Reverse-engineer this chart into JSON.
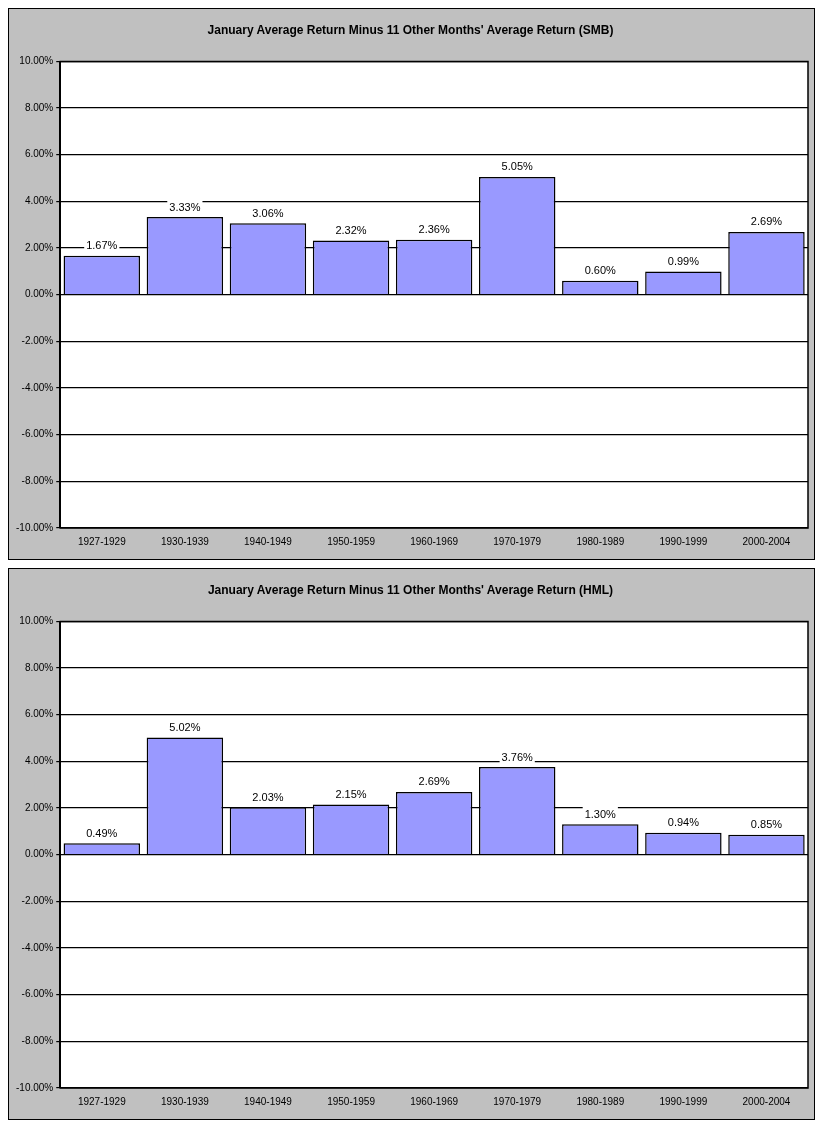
{
  "chart_data": [
    {
      "type": "bar",
      "title": "January Average Return Minus 11 Other Months' Average Return (SMB)",
      "categories": [
        "1927-1929",
        "1930-1939",
        "1940-1949",
        "1950-1959",
        "1960-1969",
        "1970-1979",
        "1980-1989",
        "1990-1999",
        "2000-2004"
      ],
      "values": [
        1.67,
        3.33,
        3.06,
        2.32,
        2.36,
        5.05,
        0.6,
        0.99,
        2.69
      ],
      "value_labels": [
        "1.67%",
        "3.33%",
        "3.06%",
        "2.32%",
        "2.36%",
        "5.05%",
        "0.60%",
        "0.99%",
        "2.69%"
      ],
      "color": "#9999ff",
      "ylim": [
        -10,
        10
      ],
      "yticks": [
        {
          "value": -10,
          "label": "-10.00%"
        },
        {
          "value": -8,
          "label": "-8.00%"
        },
        {
          "value": -6,
          "label": "-6.00%"
        },
        {
          "value": -4,
          "label": "-4.00%"
        },
        {
          "value": -2,
          "label": "-2.00%"
        },
        {
          "value": 0,
          "label": "0.00%"
        },
        {
          "value": 2,
          "label": "2.00%"
        },
        {
          "value": 4,
          "label": "4.00%"
        },
        {
          "value": 6,
          "label": "6.00%"
        },
        {
          "value": 8,
          "label": "8.00%"
        },
        {
          "value": 10,
          "label": "10.00%"
        }
      ],
      "grid": "y",
      "legend": false
    },
    {
      "type": "bar",
      "title": "January Average Return Minus 11 Other Months' Average Return (HML)",
      "categories": [
        "1927-1929",
        "1930-1939",
        "1940-1949",
        "1950-1959",
        "1960-1969",
        "1970-1979",
        "1980-1989",
        "1990-1999",
        "2000-2004"
      ],
      "values": [
        0.49,
        5.02,
        2.03,
        2.15,
        2.69,
        3.76,
        1.3,
        0.94,
        0.85
      ],
      "value_labels": [
        "0.49%",
        "5.02%",
        "2.03%",
        "2.15%",
        "2.69%",
        "3.76%",
        "1.30%",
        "0.94%",
        "0.85%"
      ],
      "color": "#9999ff",
      "ylim": [
        -10,
        10
      ],
      "yticks": [
        {
          "value": -10,
          "label": "-10.00%"
        },
        {
          "value": -8,
          "label": "-8.00%"
        },
        {
          "value": -6,
          "label": "-6.00%"
        },
        {
          "value": -4,
          "label": "-4.00%"
        },
        {
          "value": -2,
          "label": "-2.00%"
        },
        {
          "value": 0,
          "label": "0.00%"
        },
        {
          "value": 2,
          "label": "2.00%"
        },
        {
          "value": 4,
          "label": "4.00%"
        },
        {
          "value": 6,
          "label": "6.00%"
        },
        {
          "value": 8,
          "label": "8.00%"
        },
        {
          "value": 10,
          "label": "10.00%"
        }
      ],
      "grid": "y",
      "legend": false
    }
  ]
}
